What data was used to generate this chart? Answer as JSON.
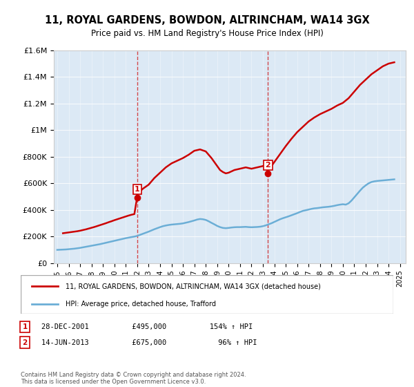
{
  "title": "11, ROYAL GARDENS, BOWDON, ALTRINCHAM, WA14 3GX",
  "subtitle": "Price paid vs. HM Land Registry's House Price Index (HPI)",
  "background_color": "#dce9f5",
  "plot_bg_color": "#dce9f5",
  "hpi_line_color": "#6baed6",
  "price_line_color": "#cc0000",
  "ylim": [
    0,
    1600000
  ],
  "yticks": [
    0,
    200000,
    400000,
    600000,
    800000,
    1000000,
    1200000,
    1400000,
    1600000
  ],
  "xlim_start": 1995.0,
  "xlim_end": 2025.5,
  "purchase1_x": 2001.99,
  "purchase1_y": 495000,
  "purchase1_label": "1",
  "purchase2_x": 2013.45,
  "purchase2_y": 675000,
  "purchase2_label": "2",
  "legend_price_label": "11, ROYAL GARDENS, BOWDON, ALTRINCHAM, WA14 3GX (detached house)",
  "legend_hpi_label": "HPI: Average price, detached house, Trafford",
  "footnote1": "28-DEC-2001          £495,000          154% ↑ HPI",
  "footnote2": "14-JUN-2013          £675,000            96% ↑ HPI",
  "copyright": "Contains HM Land Registry data © Crown copyright and database right 2024.\nThis data is licensed under the Open Government Licence v3.0.",
  "hpi_data_x": [
    1995.0,
    1995.25,
    1995.5,
    1995.75,
    1996.0,
    1996.25,
    1996.5,
    1996.75,
    1997.0,
    1997.25,
    1997.5,
    1997.75,
    1998.0,
    1998.25,
    1998.5,
    1998.75,
    1999.0,
    1999.25,
    1999.5,
    1999.75,
    2000.0,
    2000.25,
    2000.5,
    2000.75,
    2001.0,
    2001.25,
    2001.5,
    2001.75,
    2002.0,
    2002.25,
    2002.5,
    2002.75,
    2003.0,
    2003.25,
    2003.5,
    2003.75,
    2004.0,
    2004.25,
    2004.5,
    2004.75,
    2005.0,
    2005.25,
    2005.5,
    2005.75,
    2006.0,
    2006.25,
    2006.5,
    2006.75,
    2007.0,
    2007.25,
    2007.5,
    2007.75,
    2008.0,
    2008.25,
    2008.5,
    2008.75,
    2009.0,
    2009.25,
    2009.5,
    2009.75,
    2010.0,
    2010.25,
    2010.5,
    2010.75,
    2011.0,
    2011.25,
    2011.5,
    2011.75,
    2012.0,
    2012.25,
    2012.5,
    2012.75,
    2013.0,
    2013.25,
    2013.5,
    2013.75,
    2014.0,
    2014.25,
    2014.5,
    2014.75,
    2015.0,
    2015.25,
    2015.5,
    2015.75,
    2016.0,
    2016.25,
    2016.5,
    2016.75,
    2017.0,
    2017.25,
    2017.5,
    2017.75,
    2018.0,
    2018.25,
    2018.5,
    2018.75,
    2019.0,
    2019.25,
    2019.5,
    2019.75,
    2020.0,
    2020.25,
    2020.5,
    2020.75,
    2021.0,
    2021.25,
    2021.5,
    2021.75,
    2022.0,
    2022.25,
    2022.5,
    2022.75,
    2023.0,
    2023.25,
    2023.5,
    2023.75,
    2024.0,
    2024.25,
    2024.5
  ],
  "hpi_data_y": [
    100000,
    101000,
    102000,
    103000,
    105000,
    107000,
    109000,
    112000,
    115000,
    119000,
    123000,
    127000,
    131000,
    135000,
    139000,
    143000,
    148000,
    153000,
    158000,
    163000,
    168000,
    173000,
    178000,
    183000,
    188000,
    192000,
    196000,
    200000,
    205000,
    213000,
    221000,
    229000,
    237000,
    246000,
    255000,
    263000,
    271000,
    278000,
    283000,
    287000,
    290000,
    292000,
    294000,
    296000,
    299000,
    304000,
    309000,
    315000,
    321000,
    328000,
    332000,
    330000,
    325000,
    315000,
    303000,
    292000,
    280000,
    271000,
    265000,
    263000,
    265000,
    268000,
    270000,
    271000,
    271000,
    272000,
    273000,
    271000,
    270000,
    271000,
    272000,
    274000,
    278000,
    284000,
    292000,
    300000,
    310000,
    320000,
    330000,
    338000,
    345000,
    352000,
    360000,
    368000,
    376000,
    385000,
    393000,
    398000,
    403000,
    408000,
    412000,
    414000,
    417000,
    420000,
    422000,
    424000,
    427000,
    431000,
    436000,
    440000,
    443000,
    440000,
    450000,
    470000,
    495000,
    520000,
    545000,
    568000,
    585000,
    600000,
    610000,
    615000,
    618000,
    620000,
    622000,
    624000,
    626000,
    628000,
    630000
  ],
  "price_data_x": [
    1995.5,
    1995.75,
    1996.0,
    1996.25,
    1996.5,
    1996.75,
    1997.0,
    1997.25,
    1997.5,
    1997.75,
    1998.0,
    1998.25,
    1998.5,
    1998.75,
    1999.0,
    1999.25,
    1999.5,
    1999.75,
    2000.0,
    2000.25,
    2000.5,
    2000.75,
    2001.0,
    2001.25,
    2001.5,
    2001.75,
    2001.99,
    2002.0,
    2002.5,
    2003.0,
    2003.5,
    2004.0,
    2004.5,
    2005.0,
    2005.5,
    2006.0,
    2006.5,
    2007.0,
    2007.5,
    2008.0,
    2008.5,
    2008.75,
    2009.0,
    2009.25,
    2009.5,
    2009.75,
    2010.0,
    2010.25,
    2010.5,
    2010.75,
    2011.0,
    2011.25,
    2011.5,
    2011.75,
    2012.0,
    2012.25,
    2012.5,
    2012.75,
    2013.0,
    2013.25,
    2013.45,
    2013.5,
    2013.75,
    2014.0,
    2014.5,
    2015.0,
    2015.5,
    2016.0,
    2016.5,
    2017.0,
    2017.5,
    2018.0,
    2018.5,
    2019.0,
    2019.5,
    2020.0,
    2020.5,
    2021.0,
    2021.5,
    2022.0,
    2022.5,
    2023.0,
    2023.5,
    2024.0,
    2024.5
  ],
  "price_data_y": [
    225000,
    228000,
    231000,
    234000,
    237000,
    240000,
    244000,
    249000,
    254000,
    260000,
    266000,
    272000,
    279000,
    286000,
    293000,
    300000,
    308000,
    315000,
    323000,
    330000,
    337000,
    344000,
    351000,
    358000,
    364000,
    369000,
    495000,
    520000,
    560000,
    590000,
    640000,
    680000,
    720000,
    750000,
    770000,
    790000,
    815000,
    845000,
    855000,
    840000,
    790000,
    760000,
    730000,
    700000,
    685000,
    675000,
    680000,
    690000,
    700000,
    705000,
    710000,
    715000,
    720000,
    715000,
    710000,
    715000,
    720000,
    725000,
    730000,
    740000,
    675000,
    710000,
    730000,
    760000,
    820000,
    880000,
    935000,
    985000,
    1025000,
    1065000,
    1095000,
    1120000,
    1140000,
    1160000,
    1185000,
    1205000,
    1240000,
    1290000,
    1340000,
    1380000,
    1420000,
    1450000,
    1480000,
    1500000,
    1510000
  ]
}
